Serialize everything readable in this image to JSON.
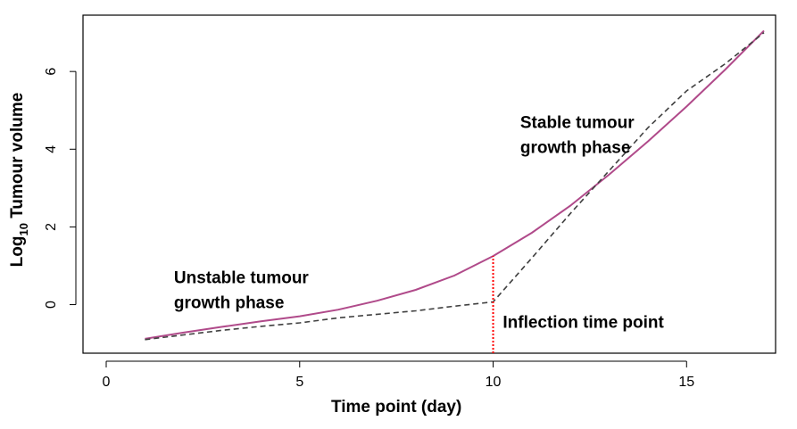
{
  "chart_data": {
    "type": "line",
    "xlabel": "Time point (day)",
    "ylabel": {
      "prefix": "Log",
      "subscript": "10",
      "suffix": " Tumour volume"
    },
    "xlim": [
      -0.6,
      17.3
    ],
    "ylim": [
      -1.25,
      7.45
    ],
    "x_ticks": [
      0,
      5,
      10,
      15
    ],
    "y_ticks": [
      0,
      2,
      4,
      6
    ],
    "grid": false,
    "series": [
      {
        "style": "solid",
        "color": "#b04a8a",
        "x": [
          1,
          2,
          3,
          4,
          5,
          6,
          7,
          8,
          9,
          10,
          11,
          12,
          13,
          14,
          15,
          16,
          17
        ],
        "y": [
          -0.88,
          -0.72,
          -0.57,
          -0.43,
          -0.3,
          -0.13,
          0.1,
          0.38,
          0.75,
          1.25,
          1.85,
          2.55,
          3.35,
          4.2,
          5.1,
          6.05,
          7.05
        ]
      },
      {
        "style": "dashed",
        "color": "#404040",
        "x": [
          1,
          2,
          3,
          4,
          5,
          6,
          7,
          8,
          9,
          10,
          11,
          12,
          13,
          14,
          15,
          16,
          17
        ],
        "y": [
          -0.9,
          -0.78,
          -0.66,
          -0.56,
          -0.47,
          -0.34,
          -0.25,
          -0.16,
          -0.04,
          0.07,
          1.2,
          2.35,
          3.45,
          4.55,
          5.5,
          6.2,
          7.0
        ]
      }
    ],
    "annotations": [
      {
        "lines": [
          "Stable tumour",
          "growth phase"
        ],
        "x": 10.7,
        "y": 4.55
      },
      {
        "lines": [
          "Unstable tumour",
          "growth phase"
        ],
        "x": 1.75,
        "y": 0.55
      },
      {
        "lines": [
          "Inflection time point"
        ],
        "x": 10.25,
        "y": -0.6,
        "color": "#ff0000"
      }
    ],
    "inflection": {
      "x": 10,
      "y_from": -1.25,
      "y_to": 1.25,
      "color": "#ff0000",
      "style": "dotted"
    }
  }
}
